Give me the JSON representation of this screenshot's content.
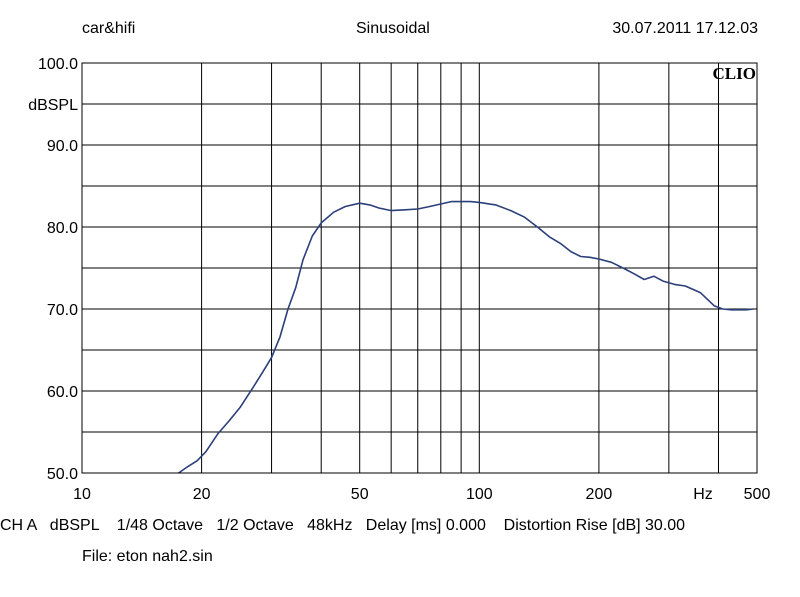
{
  "header": {
    "left": "car&hifi",
    "center": "Sinusoidal",
    "right": "30.07.2011 17.12.03"
  },
  "logo": "CLIO",
  "footer": {
    "settings": "CH A   dBSPL    1/48 Octave   1/2 Octave   48kHz   Delay [ms] 0.000    Distortion Rise [dB] 30.00",
    "file": "File: eton nah2.sin"
  },
  "chart_data": {
    "type": "line",
    "title": "",
    "xlabel": "Hz",
    "ylabel": "dBSPL",
    "xscale": "log",
    "xlim": [
      10,
      500
    ],
    "ylim": [
      50,
      100
    ],
    "grid": true,
    "x_ticks": [
      {
        "value": 10,
        "label": "10"
      },
      {
        "value": 20,
        "label": "20"
      },
      {
        "value": 50,
        "label": "50"
      },
      {
        "value": 100,
        "label": "100"
      },
      {
        "value": 200,
        "label": "200"
      },
      {
        "value": 500,
        "label": "500"
      }
    ],
    "y_ticks": [
      {
        "value": 100,
        "label": "100.0"
      },
      {
        "value": 90,
        "label": "90.0"
      },
      {
        "value": 80,
        "label": "80.0"
      },
      {
        "value": 70,
        "label": "70.0"
      },
      {
        "value": 60,
        "label": "60.0"
      },
      {
        "value": 50,
        "label": "50.0"
      }
    ],
    "line_color": "#2b3f7a",
    "series": [
      {
        "x": [
          17.5,
          18.5,
          19.5,
          20.5,
          22,
          23.5,
          25,
          27,
          28.5,
          30,
          31.5,
          33,
          34.5,
          36,
          38,
          40,
          43,
          46,
          50,
          53,
          56,
          60,
          65,
          70,
          75,
          80,
          85,
          90,
          95,
          100,
          110,
          120,
          130,
          140,
          150,
          160,
          170,
          180,
          190,
          200,
          215,
          230,
          245,
          260,
          275,
          290,
          310,
          330,
          360,
          390,
          410,
          430,
          450,
          470,
          490
        ],
        "y": [
          50.0,
          50.8,
          51.5,
          52.6,
          54.8,
          56.4,
          58.0,
          60.5,
          62.3,
          64.1,
          66.6,
          70.0,
          72.6,
          76.0,
          78.9,
          80.5,
          81.8,
          82.5,
          82.9,
          82.7,
          82.3,
          82.0,
          82.1,
          82.2,
          82.5,
          82.8,
          83.1,
          83.1,
          83.1,
          83.0,
          82.7,
          82.0,
          81.2,
          80.0,
          78.8,
          78.0,
          77.0,
          76.4,
          76.3,
          76.1,
          75.7,
          75.0,
          74.3,
          73.6,
          74.0,
          73.4,
          73.0,
          72.8,
          72.0,
          70.4,
          70.0,
          69.9,
          69.9,
          69.9,
          70.0
        ]
      }
    ]
  }
}
